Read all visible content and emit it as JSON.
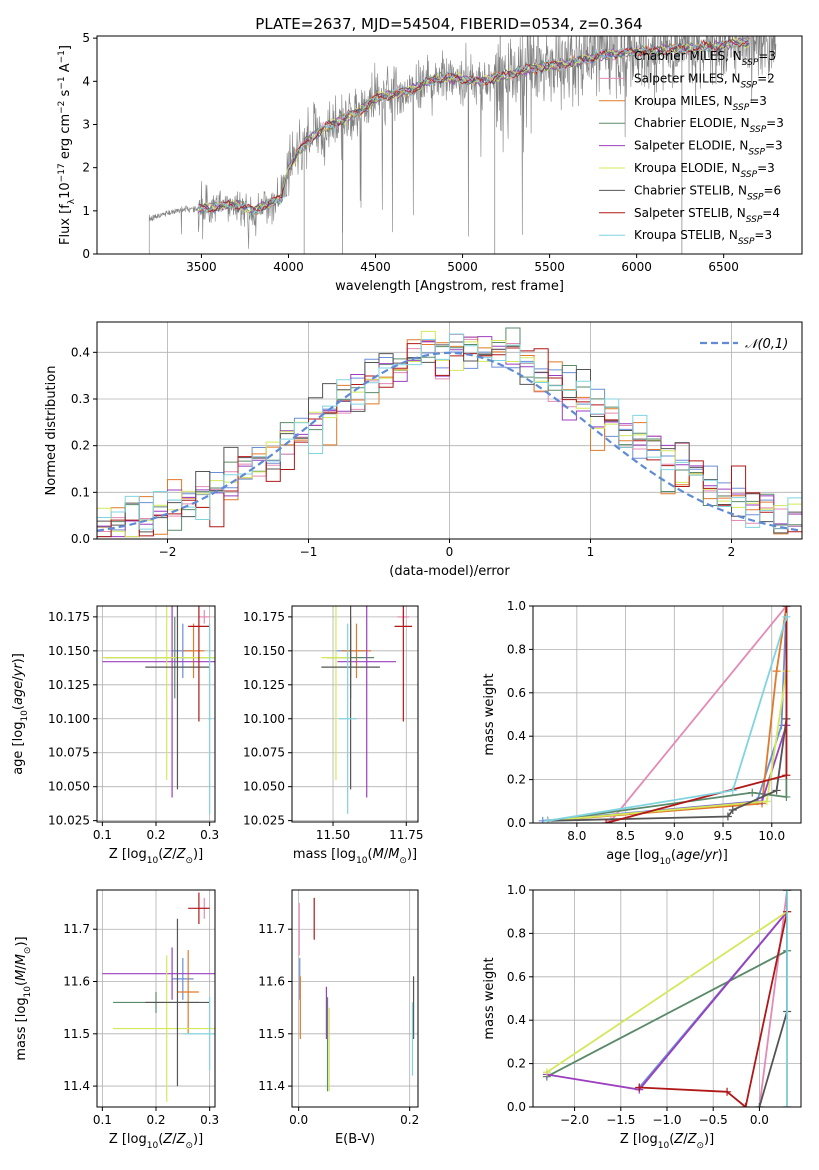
{
  "figure_title": "PLATE=2637, MJD=54504, FIBERID=0534, z=0.364",
  "colors": {
    "Chabrier MILES": "#6a8fd8",
    "Salpeter MILES": "#e38bb5",
    "Kroupa MILES": "#e07a2a",
    "Chabrier ELODIE": "#5a8a6a",
    "Salpeter ELODIE": "#9b3fbf",
    "Kroupa ELODIE": "#d4e85a",
    "Chabrier STELIB": "#555555",
    "Salpeter STELIB": "#b01818",
    "Kroupa STELIB": "#80d4e0",
    "data": "#808080",
    "normal": "#5f8ad6"
  },
  "chart_data": [
    {
      "id": "spectrum",
      "type": "line",
      "title": "PLATE=2637, MJD=54504, FIBERID=0534, z=0.364",
      "xlabel": "wavelength [Angstrom, rest frame]",
      "ylabel": "Flux [f_λ 10^-17 erg cm^-2 s^-1 A^-1]",
      "xlim": [
        2900,
        6950
      ],
      "ylim": [
        0,
        5.05
      ],
      "xticks": [
        3500,
        4000,
        4500,
        5000,
        5500,
        6000,
        6500
      ],
      "yticks": [
        0,
        1,
        2,
        3,
        4,
        5
      ],
      "grid": false,
      "legend_position": "top-right",
      "legend": [
        "Chabrier MILES, N_SSP=3",
        "Salpeter MILES, N_SSP=2",
        "Kroupa MILES, N_SSP=3",
        "Chabrier ELODIE, N_SSP=3",
        "Salpeter ELODIE, N_SSP=3",
        "Kroupa ELODIE, N_SSP=3",
        "Chabrier STELIB, N_SSP=6",
        "Salpeter STELIB, N_SSP=4",
        "Kroupa STELIB, N_SSP=3"
      ],
      "continuum": {
        "x": [
          3200,
          3300,
          3400,
          3500,
          3600,
          3700,
          3800,
          3900,
          3960,
          4000,
          4100,
          4200,
          4300,
          4400,
          4500,
          4600,
          4700,
          4800,
          4900,
          5000,
          5100,
          5200,
          5300,
          5400,
          5500,
          5600,
          5700,
          5800,
          5900,
          6000,
          6100,
          6200,
          6300,
          6400,
          6500,
          6600,
          6700,
          6800
        ],
        "y": [
          0.8,
          0.95,
          1.05,
          1.05,
          1.1,
          1.15,
          1.0,
          1.2,
          1.3,
          2.0,
          2.6,
          2.9,
          3.1,
          3.3,
          3.6,
          3.7,
          3.8,
          4.0,
          4.1,
          4.05,
          4.0,
          4.1,
          4.2,
          4.3,
          4.35,
          4.4,
          4.5,
          4.6,
          4.65,
          4.7,
          4.7,
          4.75,
          4.75,
          4.8,
          4.85,
          4.9,
          4.9,
          4.95
        ]
      }
    },
    {
      "id": "residuals",
      "type": "line",
      "xlabel": "(data-model)/error",
      "ylabel": "Normed distribution",
      "xlim": [
        -2.5,
        2.5
      ],
      "ylim": [
        0,
        0.465
      ],
      "xticks": [
        -2,
        -1,
        0,
        1,
        2
      ],
      "yticks": [
        0.0,
        0.1,
        0.2,
        0.3,
        0.4
      ],
      "grid": true,
      "legend_position": "top-right",
      "legend": [
        "𝒩(0,1)"
      ],
      "normal_curve": {
        "mean": 0,
        "std": 1
      }
    },
    {
      "id": "age_vs_Z",
      "type": "scatter",
      "xlabel": "Z [log10(Z/Z☉)]",
      "ylabel": "age  [log10(age/yr)]",
      "xlim": [
        0.09,
        0.31
      ],
      "ylim": [
        10.024,
        10.183
      ],
      "xticks": [
        0.1,
        0.2,
        0.3
      ],
      "yticks": [
        10.025,
        10.05,
        10.075,
        10.1,
        10.125,
        10.15,
        10.175
      ],
      "grid": true,
      "points": [
        {
          "model": "Chabrier MILES",
          "x": 0.25,
          "y": 10.15,
          "xerr": 0.02,
          "yerr": 0.02
        },
        {
          "model": "Salpeter MILES",
          "x": 0.29,
          "y": 10.175,
          "xerr": 0.01,
          "yerr": 0.005
        },
        {
          "model": "Kroupa MILES",
          "x": 0.27,
          "y": 10.15,
          "xerr": 0.02,
          "yerr": 0.02
        },
        {
          "model": "Chabrier ELODIE",
          "x": 0.235,
          "y": 10.145,
          "xerr": 0.13,
          "yerr": 0.03
        },
        {
          "model": "Salpeter ELODIE",
          "x": 0.23,
          "y": 10.142,
          "xerr": 0.13,
          "yerr": 0.1
        },
        {
          "model": "Kroupa ELODIE",
          "x": 0.22,
          "y": 10.145,
          "xerr": 0.12,
          "yerr": 0.09
        },
        {
          "model": "Chabrier STELIB",
          "x": 0.24,
          "y": 10.138,
          "xerr": 0.06,
          "yerr": 0.09
        },
        {
          "model": "Salpeter STELIB",
          "x": 0.28,
          "y": 10.168,
          "xerr": 0.02,
          "yerr": 0.07
        },
        {
          "model": "Kroupa STELIB",
          "x": 0.3,
          "y": 10.1,
          "xerr": 0.003,
          "yerr": 0.07
        }
      ]
    },
    {
      "id": "age_vs_mass",
      "type": "scatter",
      "xlabel": "mass [log10(M/M☉)]",
      "xlim": [
        11.36,
        11.79
      ],
      "ylim": [
        10.024,
        10.183
      ],
      "xticks": [
        11.5,
        11.75
      ],
      "xticklabels": [
        "11.50",
        "11.75"
      ],
      "yticks": [
        10.025,
        10.05,
        10.075,
        10.1,
        10.125,
        10.15,
        10.175
      ],
      "grid": true,
      "points": [
        {
          "model": "Chabrier MILES",
          "x": 11.56,
          "y": 10.15,
          "xerr": 0.05,
          "yerr": 0.02
        },
        {
          "model": "Salpeter MILES",
          "x": 11.74,
          "y": 10.175,
          "xerr": 0.02,
          "yerr": 0.005
        },
        {
          "model": "Kroupa MILES",
          "x": 11.58,
          "y": 10.15,
          "xerr": 0.05,
          "yerr": 0.02
        },
        {
          "model": "Chabrier ELODIE",
          "x": 11.56,
          "y": 10.145,
          "xerr": 0.08,
          "yerr": 0.03
        },
        {
          "model": "Salpeter ELODIE",
          "x": 11.615,
          "y": 10.142,
          "xerr": 0.1,
          "yerr": 0.1
        },
        {
          "model": "Kroupa ELODIE",
          "x": 11.51,
          "y": 10.145,
          "xerr": 0.05,
          "yerr": 0.09
        },
        {
          "model": "Chabrier STELIB",
          "x": 11.56,
          "y": 10.138,
          "xerr": 0.1,
          "yerr": 0.09
        },
        {
          "model": "Salpeter STELIB",
          "x": 11.74,
          "y": 10.168,
          "xerr": 0.03,
          "yerr": 0.07
        },
        {
          "model": "Kroupa STELIB",
          "x": 11.55,
          "y": 10.1,
          "xerr": 0.03,
          "yerr": 0.07
        }
      ]
    },
    {
      "id": "massweight_vs_age",
      "type": "line",
      "xlabel": "age  [log10(age/yr)]",
      "ylabel": "mass weight",
      "xlim": [
        7.55,
        10.3
      ],
      "ylim": [
        0,
        1.0
      ],
      "xticks": [
        8.0,
        8.5,
        9.0,
        9.5,
        10.0
      ],
      "yticks": [
        0.0,
        0.2,
        0.4,
        0.6,
        0.8,
        1.0
      ],
      "grid": true,
      "series": [
        {
          "model": "Chabrier MILES",
          "x": [
            7.65,
            9.85,
            10.1,
            10.15
          ],
          "y": [
            0.01,
            0.1,
            0.45,
            1.0
          ]
        },
        {
          "model": "Salpeter MILES",
          "x": [
            8.35,
            10.15
          ],
          "y": [
            0.01,
            1.0
          ]
        },
        {
          "model": "Kroupa MILES",
          "x": [
            7.7,
            9.9,
            10.05,
            10.15
          ],
          "y": [
            0.01,
            0.09,
            0.7,
            1.0
          ]
        },
        {
          "model": "Chabrier ELODIE",
          "x": [
            7.7,
            9.8,
            10.15,
            10.15
          ],
          "y": [
            0.01,
            0.14,
            0.12,
            1.0
          ]
        },
        {
          "model": "Salpeter ELODIE",
          "x": [
            7.7,
            9.9,
            10.15,
            10.15
          ],
          "y": [
            0.01,
            0.1,
            0.45,
            1.0
          ]
        },
        {
          "model": "Kroupa ELODIE",
          "x": [
            7.7,
            9.95,
            10.15,
            10.15
          ],
          "y": [
            0.01,
            0.1,
            0.7,
            1.0
          ]
        },
        {
          "model": "Chabrier STELIB",
          "x": [
            7.7,
            9.55,
            9.6,
            10.05,
            10.15,
            10.15
          ],
          "y": [
            0.01,
            0.03,
            0.06,
            0.15,
            0.48,
            1.0
          ]
        },
        {
          "model": "Salpeter STELIB",
          "x": [
            8.3,
            10.15,
            10.15
          ],
          "y": [
            0.0,
            0.22,
            1.0
          ]
        },
        {
          "model": "Kroupa STELIB",
          "x": [
            7.7,
            9.6,
            10.15
          ],
          "y": [
            0.01,
            0.15,
            0.95
          ]
        }
      ]
    },
    {
      "id": "mass_vs_Z",
      "type": "scatter",
      "xlabel": "Z [log10(Z/Z☉)]",
      "ylabel": "mass [log10(M/M☉)]",
      "xlim": [
        0.09,
        0.31
      ],
      "ylim": [
        11.36,
        11.775
      ],
      "xticks": [
        0.1,
        0.2,
        0.3
      ],
      "yticks": [
        11.4,
        11.5,
        11.6,
        11.7
      ],
      "grid": true,
      "points": [
        {
          "model": "Chabrier MILES",
          "x": 0.25,
          "y": 11.605,
          "xerr": 0.02,
          "yerr": 0.04
        },
        {
          "model": "Salpeter MILES",
          "x": 0.29,
          "y": 11.74,
          "xerr": 0.01,
          "yerr": 0.02
        },
        {
          "model": "Kroupa MILES",
          "x": 0.26,
          "y": 11.58,
          "xerr": 0.02,
          "yerr": 0.08
        },
        {
          "model": "Chabrier ELODIE",
          "x": 0.2,
          "y": 11.56,
          "xerr": 0.08,
          "yerr": 0.02
        },
        {
          "model": "Salpeter ELODIE",
          "x": 0.23,
          "y": 11.615,
          "xerr": 0.13,
          "yerr": 0.05
        },
        {
          "model": "Kroupa ELODIE",
          "x": 0.22,
          "y": 11.51,
          "xerr": 0.1,
          "yerr": 0.14
        },
        {
          "model": "Chabrier STELIB",
          "x": 0.24,
          "y": 11.56,
          "xerr": 0.06,
          "yerr": 0.16
        },
        {
          "model": "Salpeter STELIB",
          "x": 0.28,
          "y": 11.74,
          "xerr": 0.02,
          "yerr": 0.03
        },
        {
          "model": "Kroupa STELIB",
          "x": 0.3,
          "y": 11.5,
          "xerr": 0.05,
          "yerr": 0.07
        }
      ]
    },
    {
      "id": "mass_vs_EBV",
      "type": "scatter",
      "xlabel": "E(B-V)",
      "xlim": [
        -0.012,
        0.215
      ],
      "ylim": [
        11.36,
        11.775
      ],
      "xticks": [
        0.0,
        0.2
      ],
      "xticklabels": [
        "0.0",
        "0.2"
      ],
      "yticks": [
        11.4,
        11.5,
        11.6,
        11.7
      ],
      "grid": true,
      "points": [
        {
          "model": "Chabrier MILES",
          "x": 0.002,
          "y": 11.605,
          "xerr": 0,
          "yerr": 0.04
        },
        {
          "model": "Salpeter MILES",
          "x": 0.001,
          "y": 11.7,
          "xerr": 0,
          "yerr": 0.05
        },
        {
          "model": "Kroupa MILES",
          "x": 0.003,
          "y": 11.55,
          "xerr": 0,
          "yerr": 0.06
        },
        {
          "model": "Chabrier ELODIE",
          "x": 0.052,
          "y": 11.48,
          "xerr": 0,
          "yerr": 0.09
        },
        {
          "model": "Salpeter ELODIE",
          "x": 0.05,
          "y": 11.54,
          "xerr": 0,
          "yerr": 0.05
        },
        {
          "model": "Kroupa ELODIE",
          "x": 0.055,
          "y": 11.47,
          "xerr": 0,
          "yerr": 0.08
        },
        {
          "model": "Chabrier STELIB",
          "x": 0.207,
          "y": 11.55,
          "xerr": 0,
          "yerr": 0.06
        },
        {
          "model": "Salpeter STELIB",
          "x": 0.028,
          "y": 11.72,
          "xerr": 0,
          "yerr": 0.04
        },
        {
          "model": "Kroupa STELIB",
          "x": 0.205,
          "y": 11.49,
          "xerr": 0,
          "yerr": 0.07
        }
      ]
    },
    {
      "id": "massweight_vs_Z",
      "type": "line",
      "xlabel": "Z [log10(Z/Z☉)]",
      "ylabel": "mass weight",
      "xlim": [
        -2.45,
        0.45
      ],
      "ylim": [
        0,
        1.0
      ],
      "xticks": [
        -2.0,
        -1.5,
        -1.0,
        -0.5,
        0.0
      ],
      "yticks": [
        0.0,
        0.2,
        0.4,
        0.6,
        0.8,
        1.0
      ],
      "grid": true,
      "series": [
        {
          "model": "Chabrier MILES",
          "x": [
            -1.3,
            0.3,
            0.3
          ],
          "y": [
            0.09,
            0.9,
            1.0
          ]
        },
        {
          "model": "Salpeter MILES",
          "x": [
            0.0,
            0.3
          ],
          "y": [
            0.0,
            1.0
          ]
        },
        {
          "model": "Kroupa MILES",
          "x": [
            0.3,
            0.3
          ],
          "y": [
            0.0,
            1.0
          ]
        },
        {
          "model": "Chabrier ELODIE",
          "x": [
            -2.3,
            0.3,
            0.3
          ],
          "y": [
            0.14,
            0.72,
            1.0
          ]
        },
        {
          "model": "Salpeter ELODIE",
          "x": [
            -2.3,
            -1.3,
            0.3,
            0.3
          ],
          "y": [
            0.15,
            0.08,
            0.9,
            1.0
          ]
        },
        {
          "model": "Kroupa ELODIE",
          "x": [
            -2.3,
            0.3,
            0.3
          ],
          "y": [
            0.16,
            0.9,
            1.0
          ]
        },
        {
          "model": "Chabrier STELIB",
          "x": [
            0.0,
            0.3,
            0.3
          ],
          "y": [
            0.0,
            0.44,
            1.0
          ]
        },
        {
          "model": "Salpeter STELIB",
          "x": [
            -1.3,
            -0.35,
            -0.15,
            0.3,
            0.3
          ],
          "y": [
            0.09,
            0.07,
            0.0,
            0.9,
            1.0
          ]
        },
        {
          "model": "Kroupa STELIB",
          "x": [
            0.3,
            0.3
          ],
          "y": [
            0.0,
            1.0
          ]
        }
      ]
    }
  ]
}
